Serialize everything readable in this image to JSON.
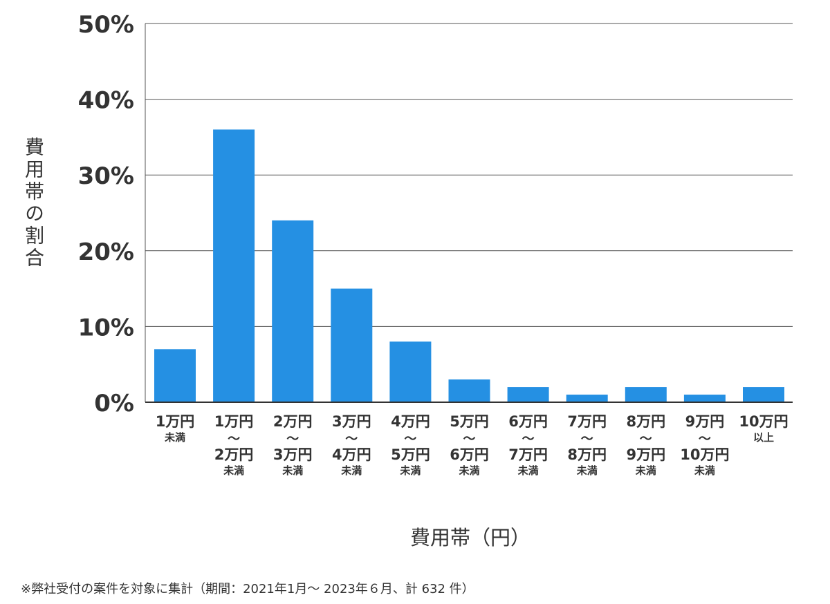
{
  "chart_data": {
    "type": "bar",
    "categories": [
      [
        "1万円",
        "未満"
      ],
      [
        "1万円",
        "〜",
        "2万円",
        "未満"
      ],
      [
        "2万円",
        "〜",
        "3万円",
        "未満"
      ],
      [
        "3万円",
        "〜",
        "4万円",
        "未満"
      ],
      [
        "4万円",
        "〜",
        "5万円",
        "未満"
      ],
      [
        "5万円",
        "〜",
        "6万円",
        "未満"
      ],
      [
        "6万円",
        "〜",
        "7万円",
        "未満"
      ],
      [
        "7万円",
        "〜",
        "8万円",
        "未満"
      ],
      [
        "8万円",
        "〜",
        "9万円",
        "未満"
      ],
      [
        "9万円",
        "〜",
        "10万円",
        "未満"
      ],
      [
        "10万円",
        "以上"
      ]
    ],
    "values": [
      7,
      36,
      24,
      15,
      8,
      3,
      2,
      1,
      2,
      1,
      2
    ],
    "ylim": [
      0,
      50
    ],
    "yticks": [
      "0%",
      "10%",
      "20%",
      "30%",
      "40%",
      "50%"
    ],
    "ylabel": "費用帯の割合",
    "xlabel": "費用帯（円）",
    "grid": true,
    "bar_color": "#2590e3"
  },
  "footnote": "※弊社受付の案件を対象に集計（期間：2021年1月～ 2023年６月、計 632 件）"
}
